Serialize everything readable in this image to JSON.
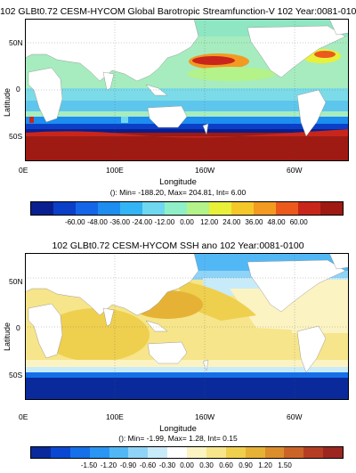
{
  "panels": [
    {
      "title": "102 GLBt0.72 CESM-HYCOM Global Barotropic Streamfunction-V 102 Year:0081-0100",
      "ylabel": "Latitude",
      "xlabel": "Longitude",
      "lat_ticks": [
        "50N",
        "0",
        "50S"
      ],
      "lon_ticks": [
        "0E",
        "100E",
        "160W",
        "60W"
      ],
      "stats": "(): Min= -188.20, Max= 204.81, Int= 6.00",
      "colorbar_labels": [
        "-60.00",
        "-48.00",
        "-36.00",
        "-24.00",
        "-12.00",
        "0.00",
        "12.00",
        "24.00",
        "36.00",
        "48.00",
        "60.00"
      ],
      "colors": [
        "#0a1f8f",
        "#0b3fc8",
        "#1565e8",
        "#1d8df0",
        "#33b5f5",
        "#6fd8f0",
        "#8ff0c8",
        "#b4f28a",
        "#e8f03a",
        "#f5c82a",
        "#f29a22",
        "#eb5a1c",
        "#c9261b",
        "#9e1a12"
      ]
    },
    {
      "title": "102 GLBt0.72 CESM-HYCOM SSH ano 102 Year:0081-0100",
      "ylabel": "Latitude",
      "xlabel": "Longitude",
      "lat_ticks": [
        "50N",
        "0",
        "50S"
      ],
      "lon_ticks": [
        "0E",
        "100E",
        "160W",
        "60W"
      ],
      "stats": "(): Min= -1.99, Max= 1.28, Int= 0.15",
      "colorbar_labels": [
        "-1.50",
        "-1.20",
        "-0.90",
        "-0.60",
        "-0.30",
        "0.00",
        "0.30",
        "0.60",
        "0.90",
        "1.20",
        "1.50"
      ],
      "colors": [
        "#0a2a9c",
        "#0b48d2",
        "#1570ea",
        "#2a95f2",
        "#52b8f5",
        "#8fd4f7",
        "#c8ebfa",
        "#ffffff",
        "#fbf3c2",
        "#f6e58a",
        "#efcf4e",
        "#e6b236",
        "#dc8d2c",
        "#cc6428",
        "#b53d24",
        "#9c2620"
      ]
    }
  ]
}
